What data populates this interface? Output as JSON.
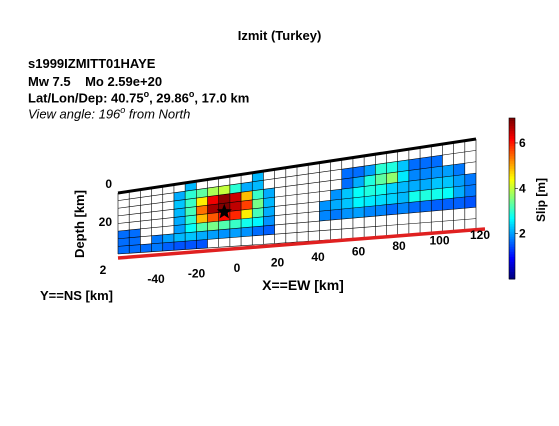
{
  "header": {
    "title": "Izmit (Turkey)",
    "event_id": "s1999IZMITT01HAYE",
    "mw_text": "Mw 7.5",
    "mo_text": "Mo 2.59e+20",
    "latlon_prefix": "Lat/Lon/Dep: 40.75",
    "lon_text": ", 29.86",
    "dep_text": ", 17.0 km",
    "degree_symbol": "o",
    "view_prefix": "View angle: 196",
    "view_suffix": " from North"
  },
  "chart_data": {
    "type": "heatmap",
    "xlabel": "X==EW [km]",
    "ylabel": "Y==NS [km]",
    "zlabel": "Depth [km]",
    "colorbar_label": "Slip [m]",
    "colorbar_ticks": [
      2,
      4,
      6
    ],
    "colorbar_range": [
      0,
      7.1
    ],
    "colormap": "jet",
    "x_ticks": [
      -40,
      -20,
      0,
      20,
      40,
      60,
      80,
      100,
      120
    ],
    "y_ticks": [
      2
    ],
    "z_ticks": [
      0,
      20
    ],
    "grid": {
      "cols": 32,
      "rows": 8
    },
    "slip": [
      [
        0,
        0,
        0,
        0,
        0,
        0,
        1.5,
        0,
        0,
        0,
        0,
        0,
        1.5,
        0,
        0,
        0,
        0,
        0,
        0,
        0,
        0,
        0,
        0,
        0,
        0,
        0,
        0,
        0,
        0,
        0,
        0,
        0
      ],
      [
        0,
        0,
        0,
        0,
        0,
        1.4,
        2.4,
        2.8,
        3.4,
        3.6,
        2.4,
        1.4,
        1.5,
        0,
        0,
        0,
        0,
        0,
        0,
        0,
        0.9,
        0.9,
        1.3,
        2.4,
        2.3,
        1.6,
        0.9,
        0.9,
        0.9,
        0,
        0,
        0
      ],
      [
        0,
        0,
        0,
        0,
        0,
        1.6,
        2.5,
        4.2,
        6.2,
        7.0,
        6.5,
        4.6,
        2.5,
        1.4,
        0,
        0,
        0,
        0,
        0,
        0,
        0.9,
        1.4,
        2.3,
        2.8,
        3.2,
        1.9,
        1.1,
        1.1,
        1.2,
        1.3,
        1.0,
        0
      ],
      [
        0,
        0,
        0,
        0,
        0,
        1.5,
        2.6,
        5.2,
        6.8,
        7.1,
        6.6,
        5.6,
        3.0,
        1.5,
        0,
        0,
        0,
        0,
        0,
        1.2,
        1.6,
        2.1,
        2.3,
        2.2,
        1.7,
        1.5,
        1.4,
        1.4,
        1.6,
        1.6,
        1.3,
        1.0
      ],
      [
        0,
        0,
        0,
        0,
        0,
        1.4,
        2.4,
        4.6,
        5.4,
        6.0,
        5.8,
        4.2,
        2.6,
        1.4,
        0,
        0,
        0,
        0,
        1.2,
        1.4,
        1.6,
        2.0,
        1.9,
        1.8,
        1.7,
        1.5,
        2.2,
        2.3,
        2.2,
        2.1,
        1.4,
        1.0
      ],
      [
        0.9,
        0.9,
        0,
        0,
        0,
        1.3,
        2.1,
        2.7,
        3.0,
        2.7,
        2.5,
        2.2,
        2.0,
        1.2,
        0,
        0,
        0,
        0,
        1.1,
        1.0,
        1.2,
        1.3,
        1.1,
        1.1,
        0.9,
        1.1,
        0.9,
        0.9,
        0.8,
        0.8,
        0.8,
        0.7
      ],
      [
        0.9,
        0.9,
        0,
        1.0,
        1.3,
        1.5,
        1.6,
        1.4,
        1.3,
        1.2,
        1.3,
        1.2,
        0.9,
        0.8,
        0,
        0,
        0,
        0,
        0,
        0,
        0,
        0,
        0,
        0,
        0,
        0,
        0,
        0,
        0,
        0,
        0,
        0
      ],
      [
        0.9,
        0.9,
        0.9,
        1.0,
        0.8,
        0.7,
        0.7,
        0.7,
        0,
        0,
        0,
        0,
        0,
        0,
        0,
        0,
        0,
        0,
        0,
        0,
        0,
        0,
        0,
        0,
        0,
        0,
        0,
        0,
        0,
        0,
        0,
        0
      ]
    ],
    "hypocenter": {
      "col": 9,
      "row": 4
    }
  }
}
